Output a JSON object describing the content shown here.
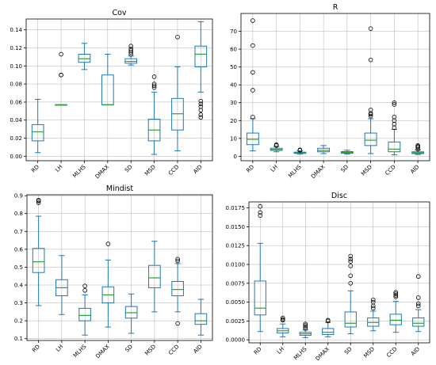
{
  "chart_data": [
    {
      "type": "box",
      "title": "Cov",
      "categories": [
        "RD",
        "LH",
        "MLHS",
        "DMAX",
        "SD",
        "MSD",
        "CCD",
        "AID"
      ],
      "ylim": [
        -0.005,
        0.152
      ],
      "yticks": [
        0.0,
        0.02,
        0.04,
        0.06,
        0.08,
        0.1,
        0.12,
        0.14
      ],
      "ytick_labels": [
        "0.00",
        "0.02",
        "0.04",
        "0.06",
        "0.08",
        "0.10",
        "0.12",
        "0.14"
      ],
      "grid": true,
      "boxes": [
        {
          "whislo": 0.004,
          "q1": 0.017,
          "med": 0.027,
          "q3": 0.035,
          "whishi": 0.063,
          "fliers": []
        },
        {
          "whislo": 0.057,
          "q1": 0.057,
          "med": 0.057,
          "q3": 0.057,
          "whishi": 0.057,
          "fliers": [
            0.09,
            0.09,
            0.113
          ]
        },
        {
          "whislo": 0.096,
          "q1": 0.104,
          "med": 0.108,
          "q3": 0.113,
          "whishi": 0.125,
          "fliers": []
        },
        {
          "whislo": 0.057,
          "q1": 0.057,
          "med": 0.057,
          "q3": 0.09,
          "whishi": 0.113,
          "fliers": []
        },
        {
          "whislo": 0.101,
          "q1": 0.103,
          "med": 0.105,
          "q3": 0.108,
          "whishi": 0.111,
          "fliers": [
            0.113,
            0.115,
            0.117,
            0.119,
            0.122
          ]
        },
        {
          "whislo": 0.002,
          "q1": 0.017,
          "med": 0.029,
          "q3": 0.041,
          "whishi": 0.071,
          "fliers": [
            0.076,
            0.078,
            0.08,
            0.088
          ]
        },
        {
          "whislo": 0.006,
          "q1": 0.029,
          "med": 0.047,
          "q3": 0.064,
          "whishi": 0.099,
          "fliers": [
            0.132
          ]
        },
        {
          "whislo": 0.071,
          "q1": 0.099,
          "med": 0.113,
          "q3": 0.122,
          "whishi": 0.149,
          "fliers": [
            0.043,
            0.046,
            0.051,
            0.055,
            0.058,
            0.061
          ]
        }
      ]
    },
    {
      "type": "box",
      "title": "R",
      "categories": [
        "RD",
        "LH",
        "MLHS",
        "DMAX",
        "SD",
        "MSD",
        "CCD",
        "AID"
      ],
      "ylim": [
        -2.5,
        80
      ],
      "yticks": [
        0,
        10,
        20,
        30,
        40,
        50,
        60,
        70
      ],
      "ytick_labels": [
        "0",
        "10",
        "20",
        "30",
        "40",
        "50",
        "60",
        "70"
      ],
      "grid": true,
      "boxes": [
        {
          "whislo": 3,
          "q1": 6.5,
          "med": 9.5,
          "q3": 13,
          "whishi": 21,
          "fliers": [
            22,
            37,
            47,
            62,
            76
          ]
        },
        {
          "whislo": 2.5,
          "q1": 3.3,
          "med": 3.8,
          "q3": 4.5,
          "whishi": 5.5,
          "fliers": [
            6,
            6.5
          ]
        },
        {
          "whislo": 1.2,
          "q1": 1.6,
          "med": 1.9,
          "q3": 2.3,
          "whishi": 3,
          "fliers": [
            3.3,
            3.6
          ]
        },
        {
          "whislo": 1.5,
          "q1": 2.5,
          "med": 3.3,
          "q3": 4.5,
          "whishi": 6,
          "fliers": []
        },
        {
          "whislo": 1.2,
          "q1": 1.7,
          "med": 2.1,
          "q3": 2.6,
          "whishi": 3.4,
          "fliers": []
        },
        {
          "whislo": 1.5,
          "q1": 6,
          "med": 9,
          "q3": 13,
          "whishi": 21,
          "fliers": [
            22.5,
            23.5,
            24,
            26,
            54,
            71.5
          ]
        },
        {
          "whislo": 0.8,
          "q1": 2.5,
          "med": 4,
          "q3": 8,
          "whishi": 15,
          "fliers": [
            16,
            18,
            20,
            22,
            29,
            30
          ]
        },
        {
          "whislo": 1,
          "q1": 1.5,
          "med": 2,
          "q3": 2.5,
          "whishi": 3.5,
          "fliers": [
            4,
            5,
            5.5,
            6
          ]
        }
      ]
    },
    {
      "type": "box",
      "title": "Mindist",
      "categories": [
        "RD",
        "LH",
        "MLHS",
        "DMAX",
        "SD",
        "MSD",
        "CCD",
        "AID"
      ],
      "ylim": [
        0.09,
        0.905
      ],
      "yticks": [
        0.1,
        0.2,
        0.3,
        0.4,
        0.5,
        0.6,
        0.7,
        0.8,
        0.9
      ],
      "ytick_labels": [
        "0.1",
        "0.2",
        "0.3",
        "0.4",
        "0.5",
        "0.6",
        "0.7",
        "0.8",
        "0.9"
      ],
      "grid": true,
      "boxes": [
        {
          "whislo": 0.285,
          "q1": 0.47,
          "med": 0.53,
          "q3": 0.605,
          "whishi": 0.785,
          "fliers": [
            0.86,
            0.87,
            0.875
          ]
        },
        {
          "whislo": 0.235,
          "q1": 0.34,
          "med": 0.385,
          "q3": 0.43,
          "whishi": 0.565,
          "fliers": []
        },
        {
          "whislo": 0.12,
          "q1": 0.2,
          "med": 0.23,
          "q3": 0.27,
          "whishi": 0.345,
          "fliers": [
            0.37,
            0.395
          ]
        },
        {
          "whislo": 0.165,
          "q1": 0.3,
          "med": 0.345,
          "q3": 0.39,
          "whishi": 0.54,
          "fliers": [
            0.63
          ]
        },
        {
          "whislo": 0.13,
          "q1": 0.215,
          "med": 0.245,
          "q3": 0.28,
          "whishi": 0.35,
          "fliers": []
        },
        {
          "whislo": 0.25,
          "q1": 0.385,
          "med": 0.44,
          "q3": 0.51,
          "whishi": 0.645,
          "fliers": []
        },
        {
          "whislo": 0.25,
          "q1": 0.34,
          "med": 0.375,
          "q3": 0.42,
          "whishi": 0.52,
          "fliers": [
            0.185,
            0.535,
            0.545
          ]
        },
        {
          "whislo": 0.12,
          "q1": 0.18,
          "med": 0.2,
          "q3": 0.24,
          "whishi": 0.32,
          "fliers": []
        }
      ]
    },
    {
      "type": "box",
      "title": "Disc",
      "categories": [
        "RD",
        "LH",
        "MLHS",
        "DMAX",
        "SD",
        "MSD",
        "CCD",
        "AID"
      ],
      "ylim": [
        -0.0004,
        0.0183
      ],
      "yticks": [
        0.0,
        0.0025,
        0.005,
        0.0075,
        0.01,
        0.0125,
        0.015,
        0.0175
      ],
      "ytick_labels": [
        "0.0000",
        "0.0025",
        "0.0050",
        "0.0075",
        "0.0100",
        "0.0125",
        "0.0150",
        "0.0175"
      ],
      "grid": true,
      "boxes": [
        {
          "whislo": 0.0011,
          "q1": 0.0033,
          "med": 0.0042,
          "q3": 0.0078,
          "whishi": 0.0128,
          "fliers": [
            0.0165,
            0.0169,
            0.0177
          ]
        },
        {
          "whislo": 0.0004,
          "q1": 0.0009,
          "med": 0.0012,
          "q3": 0.0015,
          "whishi": 0.0021,
          "fliers": [
            0.0026,
            0.0027,
            0.0029
          ]
        },
        {
          "whislo": 0.0003,
          "q1": 0.0006,
          "med": 0.0008,
          "q3": 0.001,
          "whishi": 0.0013,
          "fliers": [
            0.0015,
            0.0017,
            0.0019,
            0.0021
          ]
        },
        {
          "whislo": 0.0004,
          "q1": 0.0007,
          "med": 0.001,
          "q3": 0.0015,
          "whishi": 0.0023,
          "fliers": [
            0.0025,
            0.0026
          ]
        },
        {
          "whislo": 0.0008,
          "q1": 0.0017,
          "med": 0.0022,
          "q3": 0.0037,
          "whishi": 0.0065,
          "fliers": [
            0.0075,
            0.0085,
            0.0098,
            0.0104,
            0.0107,
            0.0111
          ]
        },
        {
          "whislo": 0.0012,
          "q1": 0.0018,
          "med": 0.0023,
          "q3": 0.0029,
          "whishi": 0.0038,
          "fliers": [
            0.0042,
            0.0045,
            0.005,
            0.0053
          ]
        },
        {
          "whislo": 0.001,
          "q1": 0.002,
          "med": 0.0026,
          "q3": 0.0034,
          "whishi": 0.0051,
          "fliers": [
            0.0057,
            0.0059,
            0.0061,
            0.0063
          ]
        },
        {
          "whislo": 0.0011,
          "q1": 0.0018,
          "med": 0.0022,
          "q3": 0.0029,
          "whishi": 0.004,
          "fliers": [
            0.0045,
            0.0048,
            0.0056,
            0.0084
          ]
        }
      ]
    }
  ]
}
